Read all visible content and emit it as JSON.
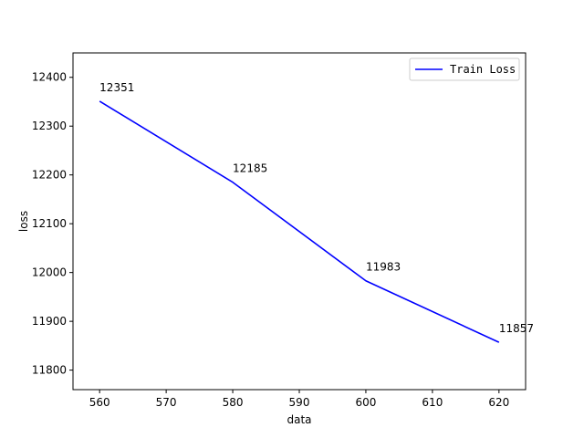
{
  "chart_data": {
    "type": "line",
    "title": "",
    "xlabel": "data",
    "ylabel": "loss",
    "xlim": [
      556,
      624
    ],
    "ylim": [
      11760,
      12450
    ],
    "xticks": [
      560,
      570,
      580,
      590,
      600,
      610,
      620
    ],
    "yticks": [
      11800,
      11900,
      12000,
      12100,
      12200,
      12300,
      12400
    ],
    "grid": false,
    "legend_position": "top-right",
    "series": [
      {
        "name": "Train Loss",
        "color": "#0000ff",
        "x": [
          560,
          580,
          600,
          620
        ],
        "y": [
          12351,
          12185,
          11983,
          11857
        ],
        "labels": [
          "12351",
          "12185",
          "11983",
          "11857"
        ]
      }
    ]
  }
}
